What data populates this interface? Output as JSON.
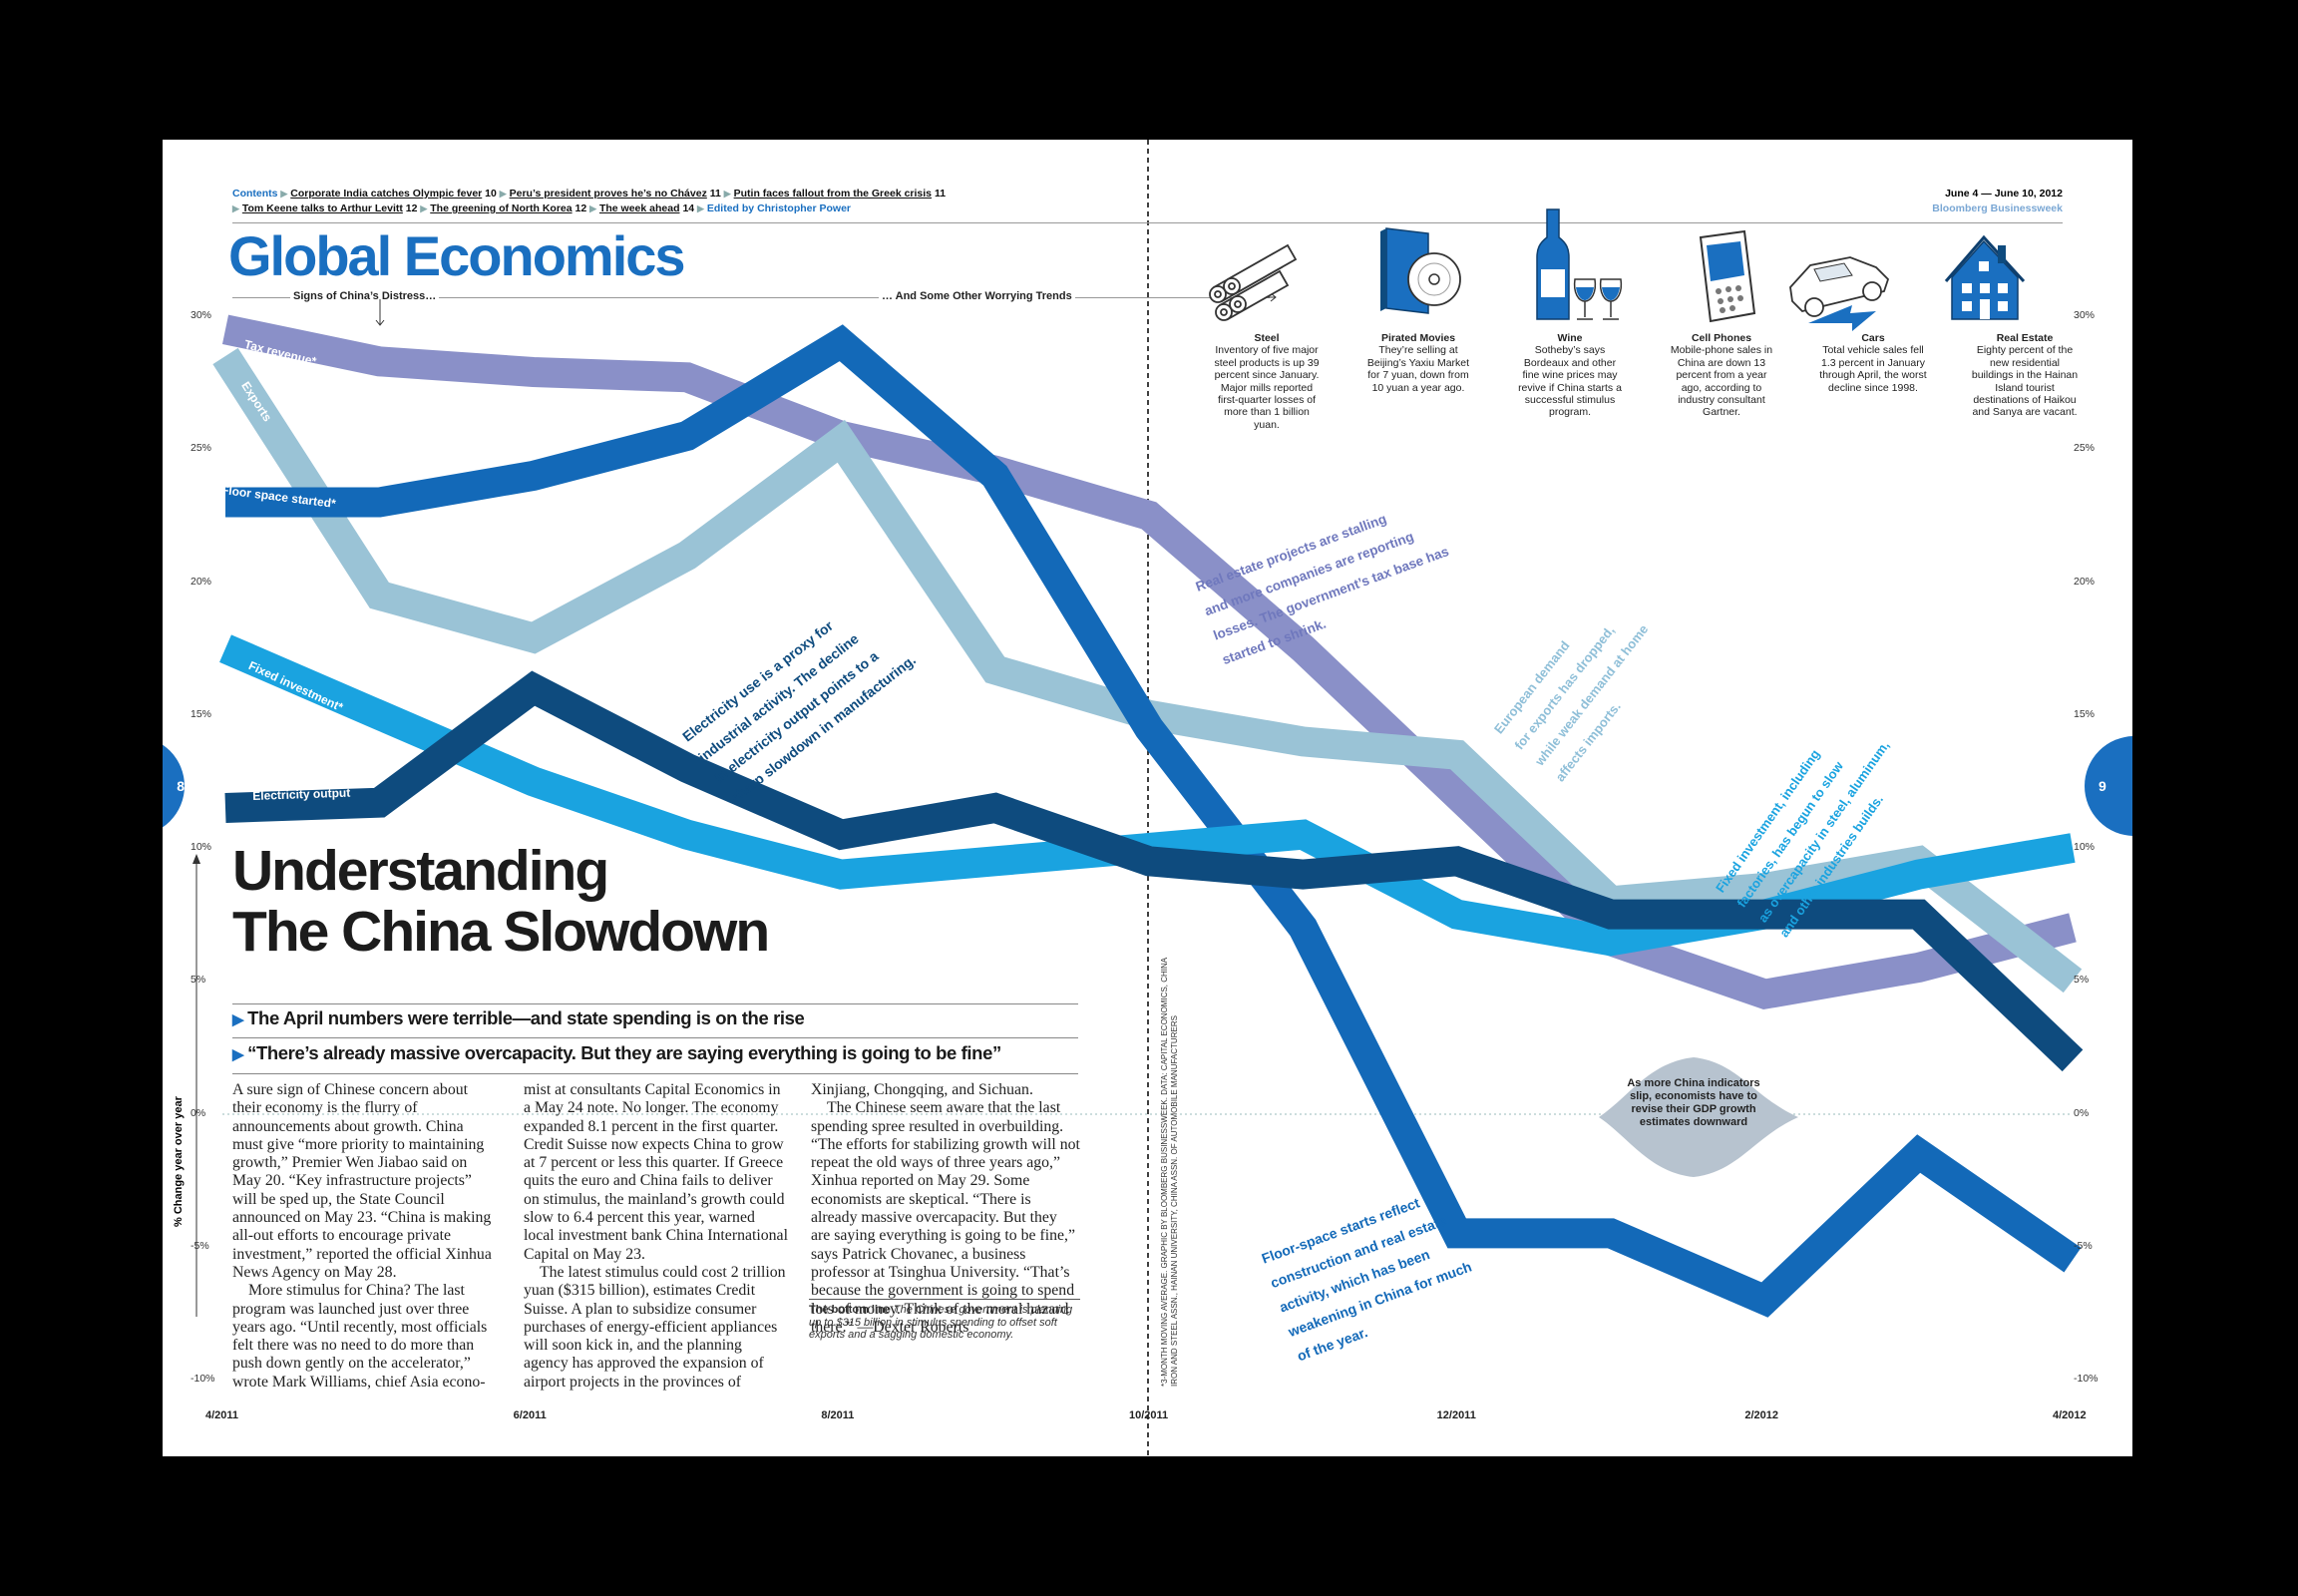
{
  "header": {
    "contents_label": "Contents",
    "toc_line1": [
      {
        "title": "Corporate India catches Olympic fever",
        "page": "10"
      },
      {
        "title": "Peru’s president proves he’s no Chávez",
        "page": "11"
      },
      {
        "title": "Putin faces fallout from the Greek crisis",
        "page": "11"
      }
    ],
    "toc_line2": [
      {
        "title": "Tom Keene talks to Arthur Levitt",
        "page": "12"
      },
      {
        "title": "The greening of North Korea",
        "page": "12"
      },
      {
        "title": "The week ahead",
        "page": "14"
      }
    ],
    "edited_by": "Edited by Christopher Power",
    "issue_date": "June 4 — June 10, 2012",
    "publication": "Bloomberg Businessweek",
    "section": "Global Economics"
  },
  "subheads": {
    "left": "Signs of China’s Distress…",
    "right": "… And Some Other Worrying Trends"
  },
  "headline": [
    "Understanding",
    "The China Slowdown"
  ],
  "decks": [
    "The April numbers were terrible—and state spending is on the rise",
    "“There’s already massive overcapacity. But they are saying everything is going to be fine”"
  ],
  "body": {
    "col1": [
      "A sure sign of Chinese concern about their economy is the flurry of announcements about growth. China must give “more priority to maintaining growth,” Premier Wen Jiabao said on May 20. “Key infrastructure projects” will be sped up, the State Council announced on May 23. “China is making all-out efforts to encourage private investment,” reported the official Xinhua News Agency on May 28.",
      "More stimulus for China? The last program was launched just over three years ago. “Until recently, most officials felt there was no need to do more than push down gently on the accelerator,” wrote Mark Williams, chief Asia econo-"
    ],
    "col2": [
      "mist at consultants Capital Economics in a May 24 note. No longer. The economy expanded 8.1 percent in the first quarter. Credit Suisse now expects China to grow at 7 percent or less this quarter. If Greece quits the euro and China fails to deliver on stimulus, the mainland’s growth could slow to 6.4 percent this year, warned local investment bank China International Capital on May 23.",
      "The latest stimulus could cost 2 trillion yuan ($315 billion), estimates Credit Suisse. A plan to subsidize consumer purchases of energy-efficient appliances will soon kick in, and the planning agency has approved the expansion of airport projects in the provinces of"
    ],
    "col3": [
      "Xinjiang, Chongqing, and Sichuan.",
      "The Chinese seem aware that the last spending spree resulted in overbuilding. “The efforts for stabilizing growth will not repeat the old ways of three years ago,” Xinhua reported on May 29. Some economists are skeptical. “There is already massive overcapacity. But they are saying everything is going to be fine,” says Patrick Chovanec, a business professor at Tsinghua University. “That’s because the government is going to spend lots of money. Think of the moral hazard there.” —Dexter Roberts"
    ],
    "bottom_line_label": "The bottom line",
    "bottom_line": "The Chinese government is planning up to $315 billion in stimulus spending to offset soft exports and a sagging domestic economy."
  },
  "trends": [
    {
      "title": "Steel",
      "text": "Inventory of five major steel products is up 39 percent since January. Major mills reported first-quarter losses of more than 1 billion yuan.",
      "icon": "steel-pipes-icon"
    },
    {
      "title": "Pirated Movies",
      "text": "They’re selling at Beijing’s Yaxiu Market for 7 yuan, down from 10 yuan a year ago.",
      "icon": "dvd-icon"
    },
    {
      "title": "Wine",
      "text": "Sotheby’s says Bordeaux and other fine wine prices may revive if China starts a successful stimulus program.",
      "icon": "wine-icon"
    },
    {
      "title": "Cell Phones",
      "text": "Mobile-phone sales in China are down 13 percent from a year ago, according to industry consultant Gartner.",
      "icon": "cell-phone-icon"
    },
    {
      "title": "Cars",
      "text": "Total vehicle sales fell 1.3 percent in January through April, the worst decline since 1998.",
      "icon": "car-icon"
    },
    {
      "title": "Real Estate",
      "text": "Eighty percent of the new residential buildings in the Hainan Island tourist destinations of Haikou and Sanya are vacant.",
      "icon": "house-icon"
    }
  ],
  "annotations": {
    "electricity": [
      "Electricity use is a proxy for",
      "industrial activity. The decline",
      "in electricity output points to a",
      "sharp slowdown in manufacturing."
    ],
    "real_estate": [
      "Real estate projects are stalling",
      "and more companies are reporting",
      "losses. The government’s tax base has",
      "started to shrink."
    ],
    "exports": [
      "European demand",
      "for exports has dropped,",
      "while weak demand at home",
      "affects imports."
    ],
    "fixed": [
      "Fixed investment, including",
      "factories, has begun to slow",
      "as overcapacity in steel, aluminum,",
      "and other industries builds."
    ],
    "floor": [
      "Floor-space starts reflect",
      "construction and real estate",
      "activity, which has been",
      "weakening in China for much",
      "of the year."
    ],
    "blob": "As more China indicators slip, economists have to revise their GDP growth estimates downward"
  },
  "source_note": "*3-MONTH MOVING AVERAGE. GRAPHIC BY BLOOMBERG BUSINESSWEEK. DATA: CAPITAL ECONOMICS, CHINA IRON AND STEEL ASSN., HAINAN UNIVERSITY, CHINA ASSN. OF AUTOMOBILE MANUFACTURERS",
  "page_numbers": {
    "left": "8",
    "right": "9"
  },
  "colors": {
    "brand_blue": "#1a6fc0",
    "tax": "#8a90c8",
    "exports": "#9ac3d6",
    "floor": "#1369b8",
    "fixed": "#1aa3e0",
    "electricity": "#0e4b7e",
    "blob": "#b7c3cf"
  },
  "chart_data": {
    "type": "line",
    "ylabel": "% Change year over year",
    "ylim": [
      -10,
      30
    ],
    "y_ticks": [
      "30%",
      "25%",
      "20%",
      "15%",
      "10%",
      "5%",
      "0%",
      "-5%",
      "-10%"
    ],
    "x_ticks": [
      "4/2011",
      "6/2011",
      "8/2011",
      "10/2011",
      "12/2011",
      "2/2012",
      "4/2012"
    ],
    "x": [
      "4/2011",
      "5/2011",
      "6/2011",
      "7/2011",
      "8/2011",
      "9/2011",
      "10/2011",
      "11/2011",
      "12/2011",
      "1/2012",
      "2/2012",
      "3/2012",
      "4/2012"
    ],
    "series": [
      {
        "name": "Tax revenue*",
        "values": [
          29.5,
          28.3,
          27.9,
          27.7,
          25.5,
          24.2,
          22.5,
          17.5,
          12.0,
          6.5,
          4.5,
          5.5,
          7.0
        ],
        "color": "#8a90c8"
      },
      {
        "name": "Exports",
        "values": [
          28.5,
          19.5,
          17.9,
          21.0,
          25.3,
          16.7,
          15.0,
          14.0,
          13.5,
          8.0,
          8.5,
          9.5,
          5.0
        ],
        "color": "#9ac3d6"
      },
      {
        "name": "Floor space started*",
        "values": [
          23.0,
          23.0,
          24.0,
          25.5,
          29.0,
          24.0,
          14.5,
          7.0,
          -4.5,
          -4.5,
          -7.0,
          -1.5,
          -5.5
        ],
        "color": "#1369b8"
      },
      {
        "name": "Fixed investment*",
        "values": [
          17.5,
          15.0,
          12.5,
          10.5,
          9.0,
          9.5,
          10.0,
          10.5,
          7.5,
          6.5,
          7.5,
          9.0,
          10.0
        ],
        "color": "#1aa3e0"
      },
      {
        "name": "Electricity output",
        "values": [
          11.5,
          11.7,
          16.0,
          13.0,
          10.5,
          11.5,
          9.5,
          9.0,
          9.5,
          7.5,
          7.5,
          7.5,
          2.0
        ],
        "color": "#0e4b7e"
      }
    ]
  }
}
